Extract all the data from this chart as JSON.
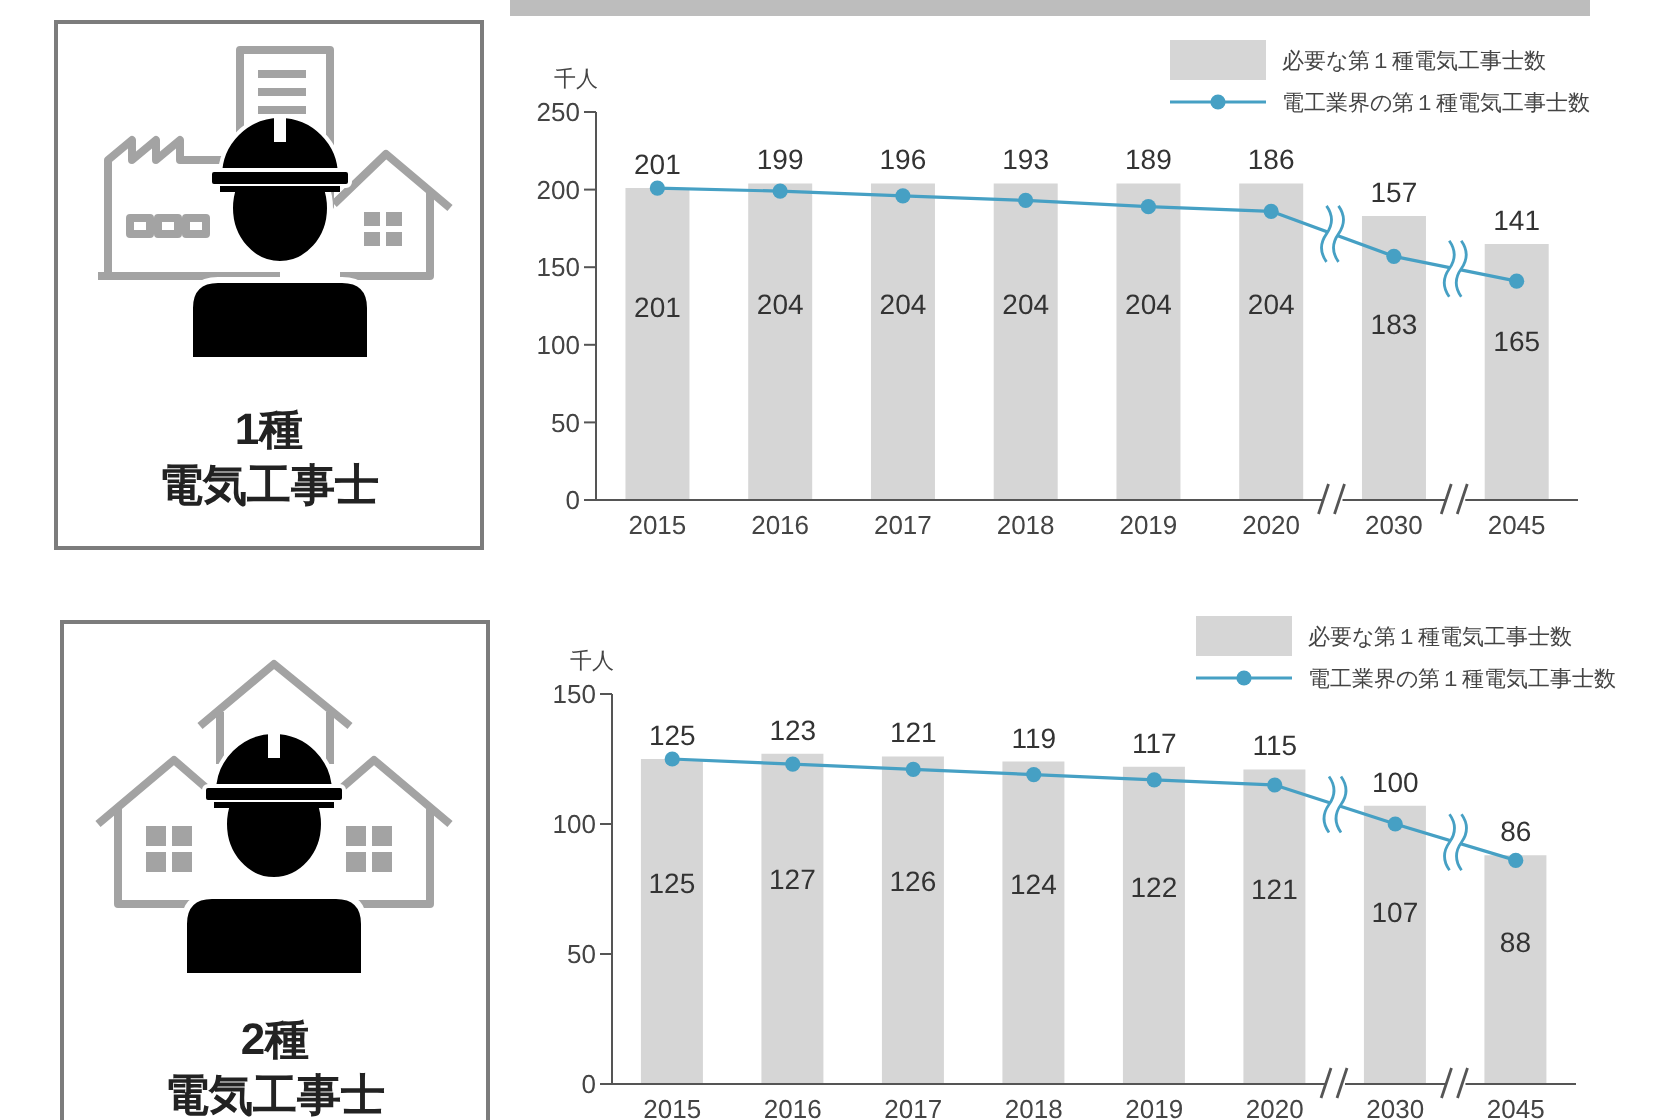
{
  "chart_data": [
    {
      "type": "other",
      "title": "1種",
      "subtitle": "電気工事士"
    },
    {
      "type": "bar",
      "ylabel": "千人",
      "categories": [
        "2015",
        "2016",
        "2017",
        "2018",
        "2019",
        "2020",
        "2030",
        "2045"
      ],
      "series": [
        {
          "name": "必要な第１種電気工事士数",
          "type": "bar",
          "color": "#d6d6d6",
          "values": [
            201,
            204,
            204,
            204,
            204,
            204,
            183,
            165
          ]
        },
        {
          "name": "電工業界の第１種電気工事士数",
          "type": "line",
          "color": "#46a0c4",
          "values": [
            201,
            199,
            196,
            193,
            189,
            186,
            157,
            141
          ]
        }
      ],
      "ylim": [
        0,
        250
      ],
      "yticks": [
        0,
        50,
        100,
        150,
        200,
        250
      ],
      "data_labels": true,
      "legend": "top right",
      "marker": "circle"
    },
    {
      "type": "other",
      "title": "2種",
      "subtitle": "電気工事士"
    },
    {
      "type": "bar",
      "ylabel": "千人",
      "categories": [
        "2015",
        "2016",
        "2017",
        "2018",
        "2019",
        "2020",
        "2030",
        "2045"
      ],
      "series": [
        {
          "name": "必要な第１種電気工事士数",
          "type": "bar",
          "color": "#d6d6d6",
          "values": [
            125,
            127,
            126,
            124,
            122,
            121,
            107,
            88
          ]
        },
        {
          "name": "電工業界の第１種電気工事士数",
          "type": "line",
          "color": "#46a0c4",
          "values": [
            125,
            123,
            121,
            119,
            117,
            115,
            100,
            86
          ]
        }
      ],
      "ylim": [
        0,
        150
      ],
      "yticks": [
        0,
        50,
        100,
        150
      ],
      "data_labels": true,
      "legend": "top right",
      "marker": "circle"
    }
  ]
}
